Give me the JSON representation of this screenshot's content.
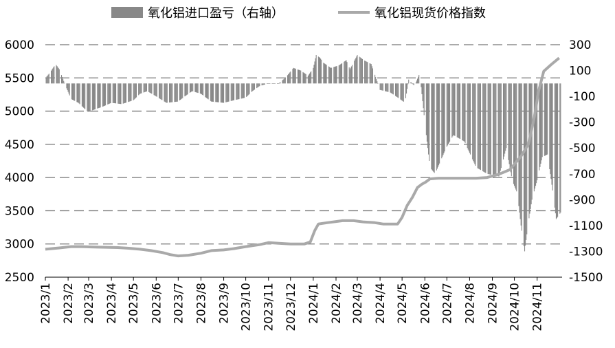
{
  "chart_data": {
    "type": "bar+line",
    "legend": [
      {
        "label": "氧化铝进口盈亏（右轴）",
        "type": "bar",
        "color": "#888888"
      },
      {
        "label": "氧化铝现货价格指数",
        "type": "line",
        "color": "#a9a9a9"
      }
    ],
    "legend_position": "top",
    "left_axis": {
      "ylim": [
        2500,
        6000
      ],
      "ticks": [
        "6000",
        "5500",
        "5000",
        "4500",
        "4000",
        "3500",
        "3000",
        "2500"
      ]
    },
    "right_axis": {
      "ylim": [
        -1500,
        300
      ],
      "ticks": [
        "300",
        "100",
        "-100",
        "-300",
        "-500",
        "-700",
        "-900",
        "-1100",
        "-1300",
        "-1500"
      ]
    },
    "x_axis": {
      "range": [
        "2023-01-01",
        "2024-12-05"
      ],
      "tick_labels": [
        "2023/1",
        "2023/2",
        "2023/3",
        "2023/4",
        "2023/5",
        "2023/6",
        "2023/7",
        "2023/8",
        "2023/9",
        "2023/10",
        "2023/11",
        "2023/12",
        "2024/1",
        "2024/2",
        "2024/3",
        "2024/4",
        "2024/5",
        "2024/6",
        "2024/7",
        "2024/8",
        "2024/9",
        "2024/10",
        "2024/11"
      ]
    },
    "grid": "horizontal dashed",
    "series": [
      {
        "name": "氧化铝现货价格指数",
        "axis": "left",
        "points": [
          [
            "2023-01-01",
            2920
          ],
          [
            "2023-01-20",
            2940
          ],
          [
            "2023-02-05",
            2960
          ],
          [
            "2023-02-20",
            2960
          ],
          [
            "2023-03-05",
            2955
          ],
          [
            "2023-03-20",
            2950
          ],
          [
            "2023-04-10",
            2945
          ],
          [
            "2023-04-25",
            2935
          ],
          [
            "2023-05-10",
            2920
          ],
          [
            "2023-05-25",
            2900
          ],
          [
            "2023-06-10",
            2870
          ],
          [
            "2023-06-20",
            2840
          ],
          [
            "2023-07-01",
            2820
          ],
          [
            "2023-07-15",
            2830
          ],
          [
            "2023-08-01",
            2860
          ],
          [
            "2023-08-15",
            2900
          ],
          [
            "2023-09-01",
            2910
          ],
          [
            "2023-09-15",
            2930
          ],
          [
            "2023-10-01",
            2960
          ],
          [
            "2023-10-20",
            2990
          ],
          [
            "2023-11-01",
            3020
          ],
          [
            "2023-11-15",
            3010
          ],
          [
            "2023-12-01",
            3000
          ],
          [
            "2023-12-20",
            3000
          ],
          [
            "2023-12-28",
            3030
          ],
          [
            "2024-01-03",
            3200
          ],
          [
            "2024-01-08",
            3300
          ],
          [
            "2024-01-20",
            3320
          ],
          [
            "2024-02-10",
            3350
          ],
          [
            "2024-02-25",
            3350
          ],
          [
            "2024-03-10",
            3330
          ],
          [
            "2024-03-25",
            3320
          ],
          [
            "2024-04-05",
            3300
          ],
          [
            "2024-04-25",
            3300
          ],
          [
            "2024-05-01",
            3400
          ],
          [
            "2024-05-08",
            3580
          ],
          [
            "2024-05-15",
            3700
          ],
          [
            "2024-05-22",
            3850
          ],
          [
            "2024-05-28",
            3900
          ],
          [
            "2024-06-02",
            3930
          ],
          [
            "2024-06-08",
            3980
          ],
          [
            "2024-06-20",
            3990
          ],
          [
            "2024-07-15",
            3990
          ],
          [
            "2024-08-10",
            3990
          ],
          [
            "2024-08-25",
            4000
          ],
          [
            "2024-09-10",
            4050
          ],
          [
            "2024-09-25",
            4120
          ],
          [
            "2024-10-01",
            4200
          ],
          [
            "2024-10-10",
            4320
          ],
          [
            "2024-10-20",
            4500
          ],
          [
            "2024-10-28",
            4900
          ],
          [
            "2024-11-03",
            5300
          ],
          [
            "2024-11-10",
            5600
          ],
          [
            "2024-11-20",
            5700
          ],
          [
            "2024-12-01",
            5800
          ]
        ]
      },
      {
        "name": "氧化铝进口盈亏（右轴）",
        "axis": "right",
        "points": [
          [
            "2023-01-01",
            40
          ],
          [
            "2023-01-08",
            90
          ],
          [
            "2023-01-15",
            150
          ],
          [
            "2023-01-20",
            110
          ],
          [
            "2023-01-28",
            -10
          ],
          [
            "2023-02-05",
            -120
          ],
          [
            "2023-02-15",
            -150
          ],
          [
            "2023-02-28",
            -220
          ],
          [
            "2023-03-10",
            -200
          ],
          [
            "2023-03-20",
            -180
          ],
          [
            "2023-04-01",
            -150
          ],
          [
            "2023-04-15",
            -160
          ],
          [
            "2023-05-01",
            -130
          ],
          [
            "2023-05-10",
            -80
          ],
          [
            "2023-05-20",
            -60
          ],
          [
            "2023-06-01",
            -100
          ],
          [
            "2023-06-15",
            -150
          ],
          [
            "2023-07-01",
            -140
          ],
          [
            "2023-07-10",
            -100
          ],
          [
            "2023-07-20",
            -60
          ],
          [
            "2023-08-01",
            -80
          ],
          [
            "2023-08-15",
            -140
          ],
          [
            "2023-09-01",
            -150
          ],
          [
            "2023-09-15",
            -130
          ],
          [
            "2023-10-01",
            -110
          ],
          [
            "2023-10-10",
            -60
          ],
          [
            "2023-10-20",
            -20
          ],
          [
            "2023-11-01",
            0
          ],
          [
            "2023-11-15",
            0
          ],
          [
            "2023-11-25",
            50
          ],
          [
            "2023-12-05",
            120
          ],
          [
            "2023-12-15",
            100
          ],
          [
            "2023-12-25",
            60
          ],
          [
            "2024-01-01",
            120
          ],
          [
            "2024-01-05",
            220
          ],
          [
            "2024-01-10",
            200
          ],
          [
            "2024-01-15",
            160
          ],
          [
            "2024-01-25",
            120
          ],
          [
            "2024-02-05",
            140
          ],
          [
            "2024-02-15",
            180
          ],
          [
            "2024-02-20",
            110
          ],
          [
            "2024-03-01",
            220
          ],
          [
            "2024-03-10",
            180
          ],
          [
            "2024-03-20",
            150
          ],
          [
            "2024-04-01",
            -50
          ],
          [
            "2024-04-15",
            -70
          ],
          [
            "2024-04-28",
            -120
          ],
          [
            "2024-05-05",
            -150
          ],
          [
            "2024-05-10",
            30
          ],
          [
            "2024-05-18",
            -20
          ],
          [
            "2024-05-25",
            80
          ],
          [
            "2024-06-01",
            -300
          ],
          [
            "2024-06-08",
            -650
          ],
          [
            "2024-06-15",
            -700
          ],
          [
            "2024-06-30",
            -500
          ],
          [
            "2024-07-10",
            -400
          ],
          [
            "2024-07-25",
            -450
          ],
          [
            "2024-08-10",
            -650
          ],
          [
            "2024-08-25",
            -700
          ],
          [
            "2024-09-10",
            -720
          ],
          [
            "2024-09-20",
            -500
          ],
          [
            "2024-09-28",
            -750
          ],
          [
            "2024-10-05",
            -850
          ],
          [
            "2024-10-10",
            -1100
          ],
          [
            "2024-10-15",
            -1300
          ],
          [
            "2024-10-20",
            -1080
          ],
          [
            "2024-10-25",
            -900
          ],
          [
            "2024-11-01",
            -750
          ],
          [
            "2024-11-08",
            -570
          ],
          [
            "2024-11-15",
            -550
          ],
          [
            "2024-11-20",
            -740
          ],
          [
            "2024-11-27",
            -1050
          ],
          [
            "2024-12-03",
            -1000
          ]
        ]
      }
    ]
  }
}
